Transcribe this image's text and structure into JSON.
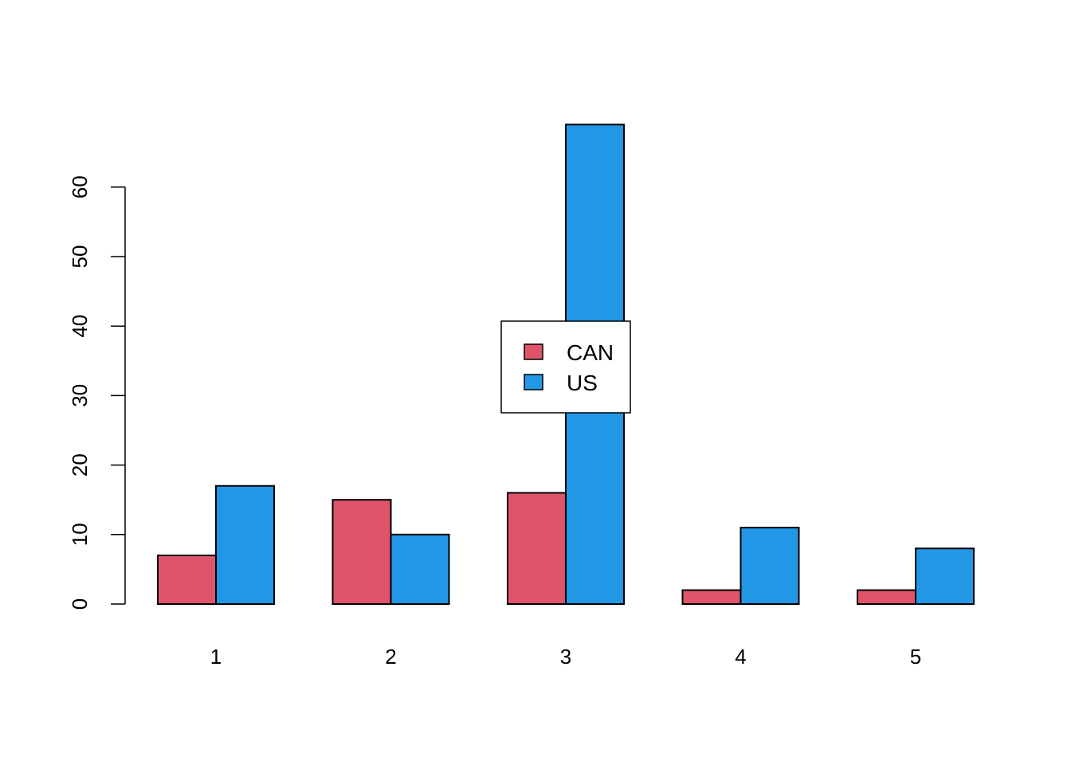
{
  "chart_data": {
    "type": "bar",
    "layout": "grouped",
    "categories": [
      "1",
      "2",
      "3",
      "4",
      "5"
    ],
    "series": [
      {
        "name": "CAN",
        "color": "#DF536B",
        "values": [
          7,
          15,
          16,
          2,
          2
        ]
      },
      {
        "name": "US",
        "color": "#2297E6",
        "values": [
          17,
          10,
          69,
          11,
          8
        ]
      }
    ],
    "y_ticks": [
      0,
      10,
      20,
      30,
      40,
      50,
      60
    ],
    "ylim": [
      0,
      69
    ],
    "title": "",
    "xlabel": "",
    "ylabel": "",
    "grid": false,
    "legend": {
      "position": "center",
      "entries": [
        "CAN",
        "US"
      ]
    },
    "bar_border_color": "#000000"
  }
}
